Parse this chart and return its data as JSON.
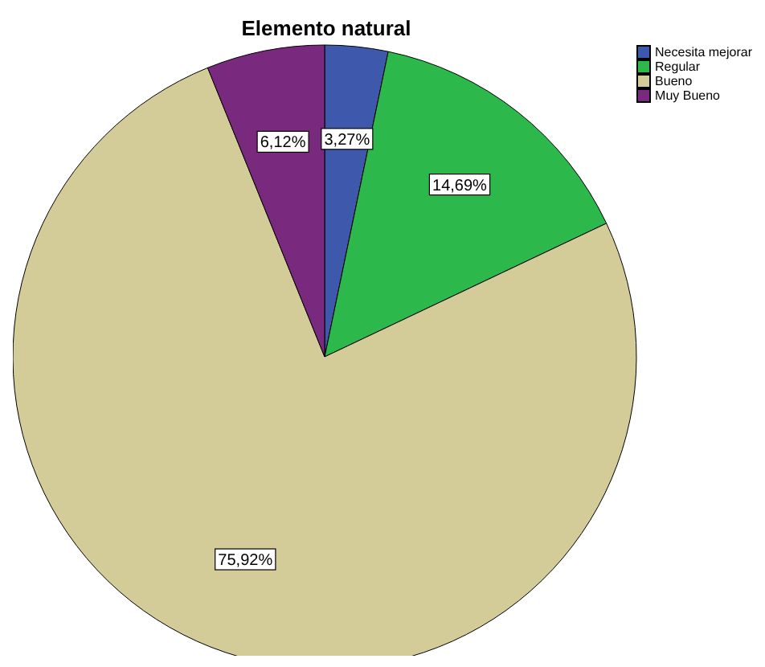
{
  "chart_data": {
    "type": "pie",
    "title": "Elemento natural",
    "categories": [
      "Necesita mejorar",
      "Regular",
      "Bueno",
      "Muy Bueno"
    ],
    "values": [
      3.27,
      14.69,
      75.92,
      6.12
    ],
    "colors": [
      "#3e58ac",
      "#2db84c",
      "#d4cc98",
      "#7a2a7e"
    ],
    "value_labels": [
      "3,27%",
      "14,69%",
      "75,92%",
      "6,12%"
    ],
    "legend": "top right"
  }
}
